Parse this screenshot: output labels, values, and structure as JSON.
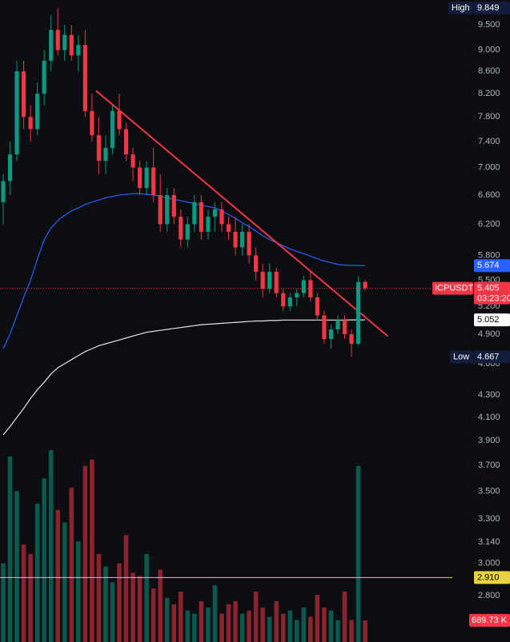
{
  "chart_data": {
    "type": "candlestick",
    "symbol": "ICPUSDT",
    "countdown": "03:23:20",
    "log_scale": true,
    "ylim": [
      2.535,
      10.02
    ],
    "yticks": [
      {
        "value": 9.5,
        "label": "9.500"
      },
      {
        "value": 9,
        "label": "9.000"
      },
      {
        "value": 8.6,
        "label": "8.600"
      },
      {
        "value": 8.2,
        "label": "8.200"
      },
      {
        "value": 7.8,
        "label": "7.800"
      },
      {
        "value": 7.4,
        "label": "7.400"
      },
      {
        "value": 7,
        "label": "7.000"
      },
      {
        "value": 6.6,
        "label": "6.600"
      },
      {
        "value": 6.2,
        "label": "6.200"
      },
      {
        "value": 5.8,
        "label": "5.800"
      },
      {
        "value": 5.5,
        "label": "5.500"
      },
      {
        "value": 5.2,
        "label": "5.200"
      },
      {
        "value": 4.9,
        "label": "4.900"
      },
      {
        "value": 4.6,
        "label": "4.600"
      },
      {
        "value": 4.3,
        "label": "4.300"
      },
      {
        "value": 4.1,
        "label": "4.100"
      },
      {
        "value": 3.9,
        "label": "3.900"
      },
      {
        "value": 3.7,
        "label": "3.700"
      },
      {
        "value": 3.5,
        "label": "3.500"
      },
      {
        "value": 3.3,
        "label": "3.300"
      },
      {
        "value": 3.14,
        "label": "3.140"
      },
      {
        "value": 3,
        "label": "3.000"
      },
      {
        "value": 2.8,
        "label": "2.800"
      }
    ],
    "up_color": "#089981",
    "down_color": "#f23645",
    "open": [
      6.5,
      6.8,
      7.2,
      8.6,
      7.8,
      7.6,
      8.2,
      8.8,
      9.4,
      9.0,
      9.3,
      8.9,
      9.1,
      7.9,
      7.5,
      7.1,
      7.3,
      7.9,
      7.6,
      7.2,
      7.0,
      6.7,
      7.0,
      6.6,
      6.2,
      6.6,
      6.3,
      6.0,
      6.2,
      6.5,
      6.1,
      6.3,
      6.4,
      6.2,
      6.1,
      5.9,
      6.1,
      5.8,
      5.6,
      5.4,
      5.6,
      5.35,
      5.2,
      5.3,
      5.35,
      5.5,
      5.3,
      5.1,
      4.85,
      4.95,
      5.05,
      4.9,
      4.8,
      5.48
    ],
    "high": [
      6.9,
      7.4,
      8.8,
      8.8,
      8.0,
      8.4,
      9.0,
      9.7,
      9.849,
      9.5,
      9.5,
      9.3,
      9.4,
      8.2,
      7.8,
      7.5,
      8.0,
      8.2,
      7.7,
      7.3,
      7.1,
      7.1,
      7.3,
      6.9,
      6.7,
      6.7,
      6.4,
      6.3,
      6.6,
      6.6,
      6.4,
      6.5,
      6.5,
      6.3,
      6.3,
      6.2,
      6.2,
      5.9,
      5.7,
      5.7,
      5.65,
      5.4,
      5.35,
      5.4,
      5.55,
      5.6,
      5.35,
      5.15,
      5.0,
      5.1,
      5.1,
      4.95,
      5.55,
      5.5
    ],
    "low": [
      6.2,
      6.6,
      7.1,
      7.6,
      7.4,
      7.5,
      8.0,
      8.6,
      8.9,
      8.8,
      8.8,
      8.6,
      7.8,
      7.4,
      6.9,
      6.9,
      7.2,
      7.5,
      7.1,
      6.8,
      6.6,
      6.6,
      6.5,
      6.1,
      6.1,
      6.2,
      5.9,
      5.9,
      6.1,
      6.0,
      6.0,
      6.1,
      6.1,
      6.0,
      5.8,
      5.8,
      5.7,
      5.5,
      5.3,
      5.35,
      5.3,
      5.15,
      5.15,
      5.2,
      5.3,
      5.25,
      5.05,
      4.8,
      4.75,
      4.9,
      4.85,
      4.667,
      4.78,
      5.38
    ],
    "close": [
      6.8,
      7.2,
      8.6,
      7.8,
      7.6,
      8.2,
      8.8,
      9.4,
      9.0,
      9.3,
      8.9,
      9.1,
      7.9,
      7.5,
      7.1,
      7.3,
      7.9,
      7.6,
      7.2,
      7.0,
      6.7,
      7.0,
      6.6,
      6.2,
      6.6,
      6.3,
      6.0,
      6.2,
      6.5,
      6.1,
      6.3,
      6.4,
      6.2,
      6.1,
      5.9,
      6.1,
      5.8,
      5.6,
      5.4,
      5.6,
      5.35,
      5.2,
      5.3,
      5.35,
      5.5,
      5.3,
      5.1,
      4.85,
      4.95,
      5.05,
      4.9,
      4.8,
      5.48,
      5.405
    ],
    "volume": {
      "values": [
        2500,
        5900,
        4800,
        3100,
        2800,
        4400,
        5200,
        6100,
        4200,
        3800,
        4900,
        3200,
        5600,
        5800,
        2800,
        2400,
        1900,
        2500,
        3400,
        2200,
        2100,
        2800,
        1700,
        2300,
        1400,
        1200,
        1600,
        1000,
        900,
        1300,
        1100,
        1800,
        900,
        1200,
        1300,
        900,
        1000,
        1600,
        1100,
        800,
        1300,
        900,
        1000,
        700,
        1100,
        800,
        1500,
        1100,
        1000,
        700,
        1600,
        700,
        5600,
        689.73
      ],
      "last_label": "689.73 K",
      "label_color": "#f23645"
    },
    "ma_lines": [
      {
        "color": "#2962ff",
        "label_bg": "#2962ff",
        "values": [
          4.75,
          4.9,
          5.1,
          5.3,
          5.5,
          5.75,
          6.0,
          6.15,
          6.25,
          6.32,
          6.38,
          6.42,
          6.47,
          6.5,
          6.53,
          6.56,
          6.58,
          6.6,
          6.61,
          6.62,
          6.62,
          6.61,
          6.6,
          6.58,
          6.56,
          6.54,
          6.52,
          6.5,
          6.48,
          6.46,
          6.44,
          6.42,
          6.38,
          6.33,
          6.28,
          6.22,
          6.17,
          6.11,
          6.05,
          6.0,
          5.96,
          5.92,
          5.88,
          5.85,
          5.82,
          5.79,
          5.76,
          5.73,
          5.71,
          5.69,
          5.68,
          5.677,
          5.675,
          5.674
        ]
      },
      {
        "color": "#e6e6e6",
        "label_bg": "#ffffff",
        "values": [
          3.95,
          4.02,
          4.1,
          4.18,
          4.27,
          4.35,
          4.42,
          4.5,
          4.56,
          4.6,
          4.64,
          4.68,
          4.72,
          4.75,
          4.78,
          4.8,
          4.82,
          4.84,
          4.86,
          4.88,
          4.9,
          4.92,
          4.93,
          4.94,
          4.95,
          4.96,
          4.97,
          4.98,
          4.99,
          5.0,
          5.005,
          5.01,
          5.015,
          5.02,
          5.025,
          5.03,
          5.035,
          5.04,
          5.04,
          5.045,
          5.045,
          5.05,
          5.05,
          5.05,
          5.05,
          5.05,
          5.05,
          5.05,
          5.05,
          5.05,
          5.05,
          5.052,
          5.052,
          5.052
        ]
      }
    ],
    "trendline": {
      "color": "#f23645",
      "x": [
        13.6,
        56.3
      ],
      "y": [
        8.25,
        4.88
      ]
    },
    "hline": {
      "value": 2.91,
      "label": "2.910",
      "color": "#e8d33f"
    },
    "high_marker": {
      "label": "High",
      "value": 9.849
    },
    "low_marker": {
      "label": "Low",
      "value": 4.667
    }
  }
}
